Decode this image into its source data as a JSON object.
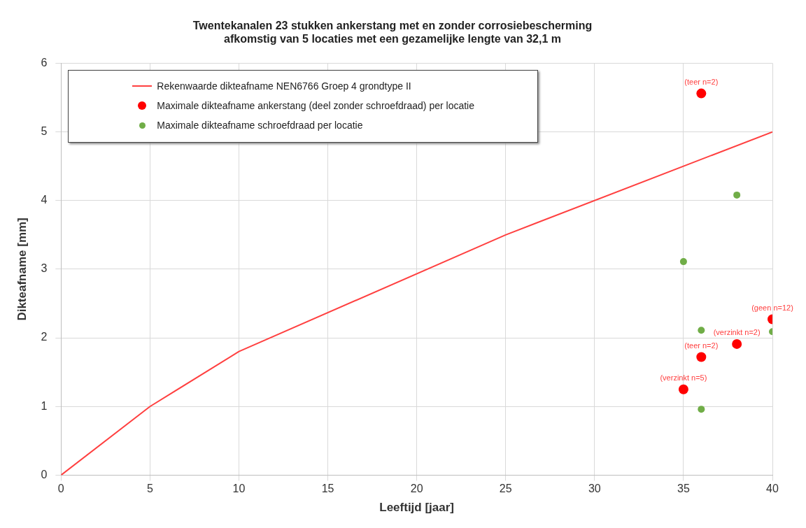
{
  "chart_data": {
    "type": "scatter",
    "title": [
      "Twentekanalen 23 stukken ankerstang met en zonder corrosiebescherming",
      "afkomstig van 5 locaties met een gezamelijke lengte van 32,1 m"
    ],
    "xlabel": "Leeftijd [jaar]",
    "ylabel": "Dikteafname [mm]",
    "series": [
      {
        "name": "Rekenwaarde dikteafname NEN6766 Groep 4  grondtype II",
        "type": "line",
        "color": "#ff4040",
        "x": [
          0,
          5,
          10,
          25,
          40
        ],
        "values": [
          0,
          1,
          1.8,
          3.5,
          5
        ],
        "marker": "none",
        "line_style": "solid"
      },
      {
        "name": "Maximale dikteafname ankerstang (deel zonder schroefdraad) per locatie",
        "type": "scatter",
        "color": "#ff0000",
        "x": [
          36,
          40,
          38,
          36,
          35
        ],
        "values": [
          5.56,
          2.27,
          1.91,
          1.72,
          1.25
        ],
        "marker": "circle"
      },
      {
        "name": "Maximale dikteafname schroefdraad per locatie",
        "type": "scatter",
        "color": "#70ad47",
        "x": [
          38,
          35,
          36,
          40,
          36
        ],
        "values": [
          4.08,
          3.11,
          2.11,
          2.09,
          0.96
        ],
        "marker": "circle"
      }
    ],
    "annotations": [
      {
        "text": "(teer n=2)",
        "x": 36,
        "y": 5.56
      },
      {
        "text": "(geen n=12)",
        "x": 40,
        "y": 2.27
      },
      {
        "text": "(verzinkt n=2)",
        "x": 38,
        "y": 1.91
      },
      {
        "text": "(teer n=2)",
        "x": 36,
        "y": 1.72
      },
      {
        "text": "(verzinkt n=5)",
        "x": 35,
        "y": 1.25
      }
    ],
    "xlim": [
      0,
      40
    ],
    "xticks": [
      0,
      5,
      10,
      15,
      20,
      25,
      30,
      35,
      40
    ],
    "ylim": [
      0,
      6
    ],
    "yticks": [
      0,
      1,
      2,
      3,
      4,
      5,
      6
    ],
    "grid": true,
    "legend": "top left"
  }
}
